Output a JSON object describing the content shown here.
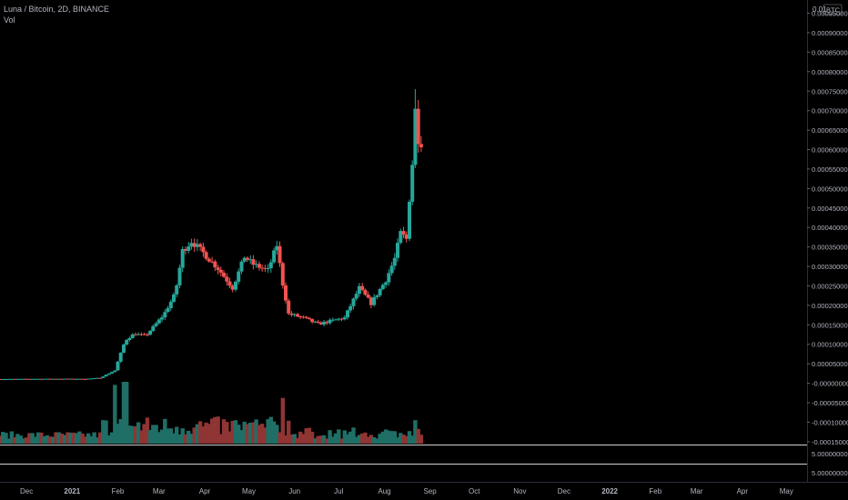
{
  "legend": {
    "symbol": "Luna / Bitcoin, 2D, BINANCE",
    "volume_label": "Vol"
  },
  "colors": {
    "background": "#000000",
    "up": "#26a69a",
    "down": "#ef5350",
    "volume_up": "#1f6f66",
    "volume_down": "#8f3534",
    "axis_text": "#b2b5be",
    "separator": "#d0d0d0"
  },
  "price_axis": {
    "unit_label": "BTC",
    "top_label": "0.01",
    "tick_labels": [
      "0.00095000",
      "0.00090000",
      "0.00085000",
      "0.00080000",
      "0.00075000",
      "0.00070000",
      "0.00065000",
      "0.00060000",
      "0.00055000",
      "0.00050000",
      "0.00045000",
      "0.00040000",
      "0.00035000",
      "0.00030000",
      "0.00025000",
      "0.00020000",
      "0.00015000",
      "0.00010000",
      "0.00005000",
      "-0.00000000",
      "-0.00005000",
      "-0.00010000",
      "-0.00015000"
    ],
    "tick_values": [
      0.00095,
      0.0009,
      0.00085,
      0.0008,
      0.00075,
      0.0007,
      0.00065,
      0.0006,
      0.00055,
      0.0005,
      0.00045,
      0.0004,
      0.00035,
      0.0003,
      0.00025,
      0.0002,
      0.00015,
      0.0001,
      5e-05,
      0,
      -5e-05,
      -0.0001,
      -0.00015
    ],
    "pane_labels": [
      "5.00000000",
      "5.00000000"
    ]
  },
  "time_axis": {
    "labels": [
      "Dec",
      "2021",
      "Feb",
      "Mar",
      "Apr",
      "May",
      "Jun",
      "Jul",
      "Aug",
      "Sep",
      "Oct",
      "Nov",
      "Dec",
      "2022",
      "Feb",
      "Mar",
      "Apr",
      "May"
    ],
    "bold": [
      false,
      true,
      false,
      false,
      false,
      false,
      false,
      false,
      false,
      false,
      false,
      false,
      false,
      true,
      false,
      false,
      false,
      false
    ]
  },
  "chart_data": {
    "type": "candlestick",
    "title": "Luna / Bitcoin, 2D, BINANCE",
    "interval": "2D",
    "exchange": "BINANCE",
    "y_unit": "BTC",
    "ylim": [
      -0.000155,
      0.00097
    ],
    "x_start": "2020-11-13",
    "x_end": "2022-05-15",
    "grid": false,
    "candle_count": 140,
    "keypoints": [
      {
        "date": "2020-11-13",
        "close": 1.08e-05
      },
      {
        "date": "2020-12-15",
        "close": 1.15e-05
      },
      {
        "date": "2021-01-10",
        "close": 1.12e-05
      },
      {
        "date": "2021-01-20",
        "close": 1.4e-05
      },
      {
        "date": "2021-01-30",
        "close": 3.3e-05
      },
      {
        "date": "2021-02-06",
        "close": 0.00011
      },
      {
        "date": "2021-02-12",
        "close": 0.000127
      },
      {
        "date": "2021-02-20",
        "close": 0.000122
      },
      {
        "date": "2021-03-04",
        "close": 0.000175
      },
      {
        "date": "2021-03-12",
        "close": 0.00023
      },
      {
        "date": "2021-03-17",
        "close": 0.00034
      },
      {
        "date": "2021-03-23",
        "close": 0.000365
      },
      {
        "date": "2021-03-31",
        "close": 0.000335
      },
      {
        "date": "2021-04-10",
        "close": 0.000295
      },
      {
        "date": "2021-04-20",
        "close": 0.000245
      },
      {
        "date": "2021-04-28",
        "close": 0.000325
      },
      {
        "date": "2021-05-04",
        "close": 0.000305
      },
      {
        "date": "2021-05-14",
        "close": 0.00029
      },
      {
        "date": "2021-05-20",
        "close": 0.000355
      },
      {
        "date": "2021-05-24",
        "close": 0.000255
      },
      {
        "date": "2021-05-28",
        "close": 0.000178
      },
      {
        "date": "2021-06-07",
        "close": 0.000168
      },
      {
        "date": "2021-06-17",
        "close": 0.000152
      },
      {
        "date": "2021-06-29",
        "close": 0.000163
      },
      {
        "date": "2021-07-05",
        "close": 0.000168
      },
      {
        "date": "2021-07-15",
        "close": 0.000245
      },
      {
        "date": "2021-07-23",
        "close": 0.000205
      },
      {
        "date": "2021-08-02",
        "close": 0.000265
      },
      {
        "date": "2021-08-08",
        "close": 0.00032
      },
      {
        "date": "2021-08-12",
        "close": 0.000385
      },
      {
        "date": "2021-08-16",
        "close": 0.00037
      },
      {
        "date": "2021-08-18",
        "close": 0.000475
      },
      {
        "date": "2021-08-20",
        "close": 0.000565
      },
      {
        "date": "2021-08-22",
        "close": 0.0007
      },
      {
        "date": "2021-08-24",
        "close": 0.00063
      },
      {
        "date": "2021-08-26",
        "close": 0.00062
      },
      {
        "date": "2021-08-27",
        "close": 0.000648
      }
    ],
    "peak_high": {
      "date": "2021-08-22",
      "value": 0.000755
    },
    "volume": {
      "label": "Vol",
      "peaks": [
        {
          "date": "2021-02-06",
          "relative": 1.0
        },
        {
          "date": "2021-01-30",
          "relative": 0.95
        },
        {
          "date": "2021-05-24",
          "relative": 0.74
        },
        {
          "date": "2021-08-22",
          "relative": 0.38
        }
      ]
    }
  }
}
